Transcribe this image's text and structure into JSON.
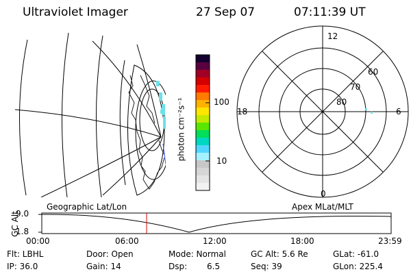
{
  "header": {
    "instrument": "Ultraviolet Imager",
    "date": "27 Sep 07",
    "time": "07:11:39 UT"
  },
  "colorbar": {
    "unit_label": "photon cm⁻²s⁻¹",
    "ticks": [
      "100",
      "10"
    ],
    "colors": [
      "#f2f2f2",
      "#e4e4e4",
      "#d6d6d6",
      "#c7c7c7",
      "#a6f1ff",
      "#52d6ff",
      "#00d7c0",
      "#00de5a",
      "#5ae600",
      "#c3ea00",
      "#ffe600",
      "#ffb300",
      "#ff7a00",
      "#ff1c00",
      "#d40000",
      "#a10026",
      "#5a003f",
      "#14002e"
    ]
  },
  "polar": {
    "mlt_labels": {
      "top": "12",
      "left": "18",
      "right": "6",
      "bottom": "0"
    },
    "lat_labels": [
      "60",
      "70",
      "80"
    ]
  },
  "timeline": {
    "left_label": "Geographic Lat/Lon",
    "right_label": "Apex  MLat/MLT",
    "y_title": "GC Alt",
    "y_ticks": [
      "9.0",
      "1.8"
    ],
    "x_ticks": [
      "00:00",
      "06:00",
      "12:00",
      "18:00",
      "23:59"
    ],
    "current_time": "07:11:39"
  },
  "footer": {
    "row1": {
      "filter": "Flt: LBHL",
      "door": "Door: Open",
      "mode": "Mode: Normal",
      "alt": "GC Alt: 5.6 Re",
      "glat": "GLat: -61.0"
    },
    "row2": {
      "ip": "IP: 36.0",
      "gain": "Gain: 14",
      "dsp_label": "Dsp:",
      "dsp_value": "6.5",
      "seq": "Seq: 39",
      "glon": "GLon: 225.4"
    }
  },
  "colors": {
    "line": "#000000",
    "marker": "#dd0000",
    "aurora": "#6ee0e8",
    "coast": "#222222"
  }
}
